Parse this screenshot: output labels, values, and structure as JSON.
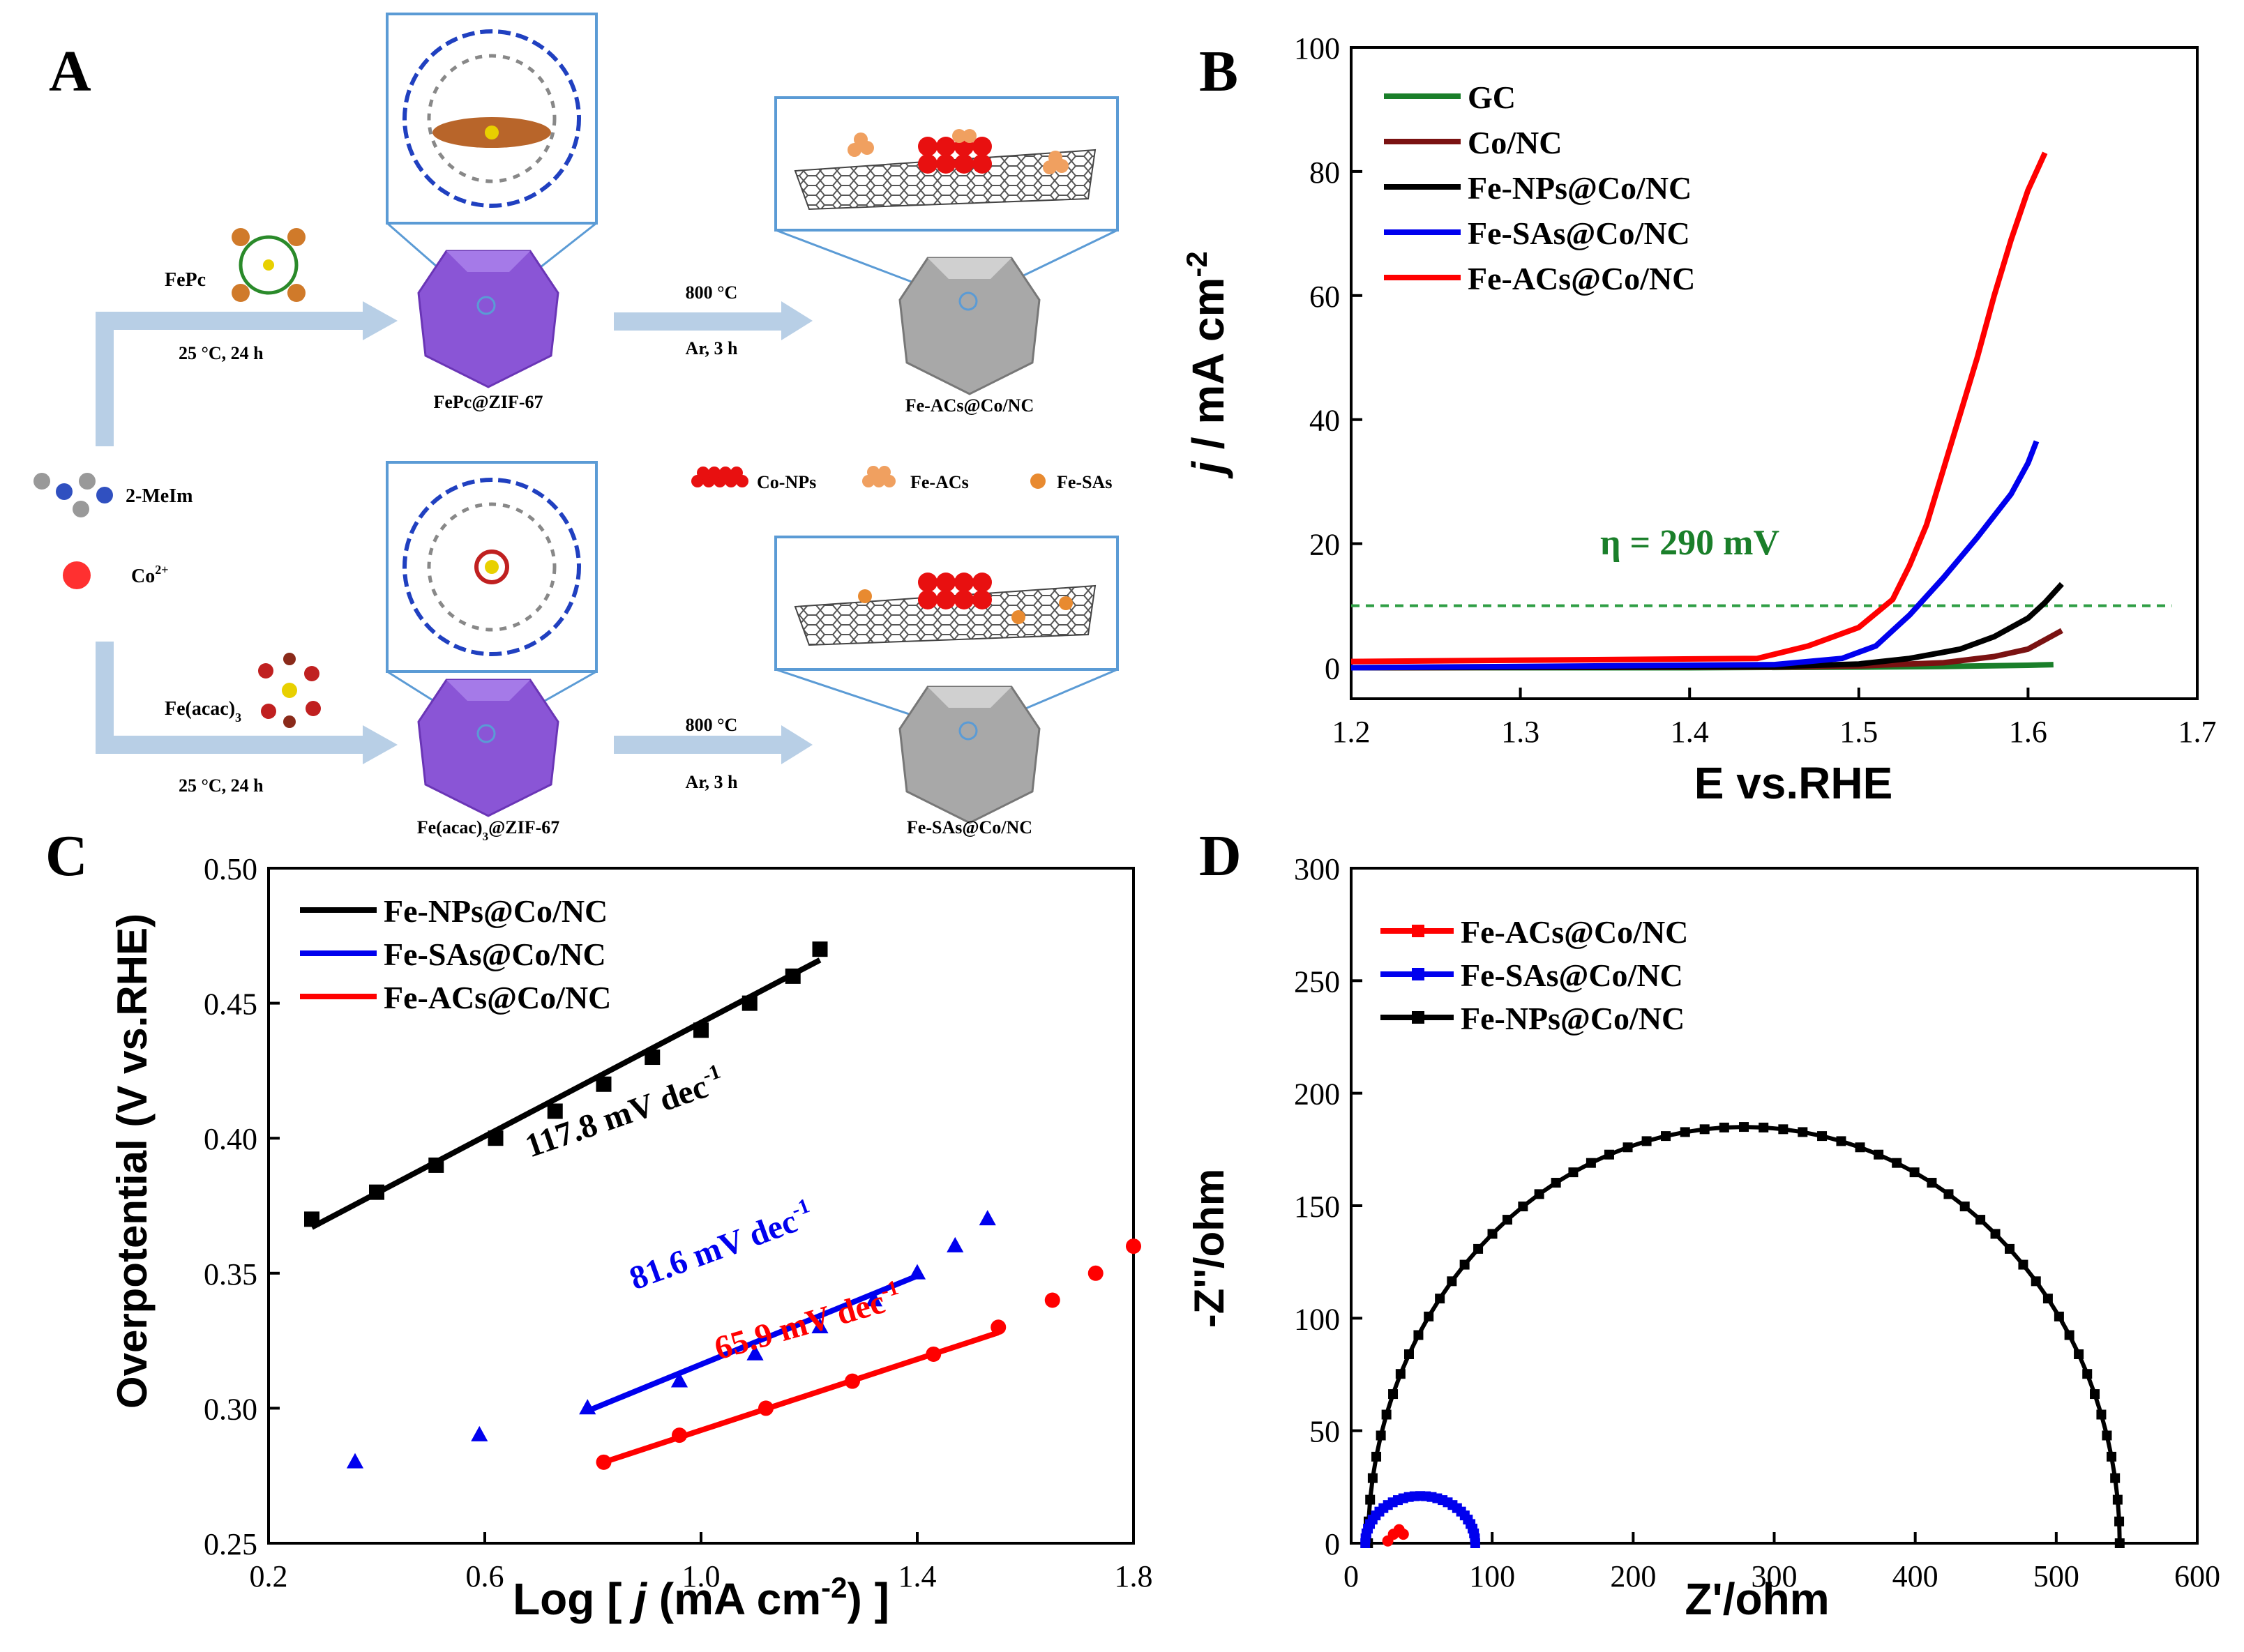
{
  "panel_labels": {
    "a": "A",
    "b": "B",
    "c": "C",
    "d": "D"
  },
  "scheme": {
    "fepc_label": "FePc",
    "fe_acac_label": "Fe(acac)",
    "fe_acac_sub": "3",
    "step1_cond": "25 °C, 24 h",
    "step2_cond_temp": "800 °C",
    "step2_cond_gas": "Ar, 3 h",
    "ligand_label": "2-MeIm",
    "co_label": "Co",
    "co_sup": "2+",
    "top_precursor": "FePc@ZIF-67",
    "bottom_precursor_a": "Fe(acac)",
    "bottom_precursor_sub": "3",
    "bottom_precursor_b": "@ZIF-67",
    "top_product": "Fe-ACs@Co/NC",
    "bottom_product": "Fe-SAs@Co/NC",
    "legend_co_nps": "Co-NPs",
    "legend_fe_acs": "Fe-ACs",
    "legend_fe_sas": "Fe-SAs"
  },
  "colors": {
    "gc": "#1a7f2a",
    "co_nc": "#7a1212",
    "fe_nps": "#000000",
    "fe_sas": "#0000ee",
    "fe_acs": "#ff0000",
    "dashed": "#2e9e44",
    "annotation_green": "#1a7f2a",
    "arrow": "#b8cfe6",
    "box": "#5b9bd5",
    "zif": "#8a55d6",
    "carbon": "#9a9a9a"
  },
  "chart_data": [
    {
      "panel": "B",
      "type": "line",
      "xlabel": "E vs.RHE",
      "ylabel_italic": "j",
      "ylabel_rest": " / mA cm",
      "ylabel_sup": "-2",
      "xlim": [
        1.2,
        1.7
      ],
      "ylim": [
        -5,
        100
      ],
      "xticks": [
        "1.2",
        "1.3",
        "1.4",
        "1.5",
        "1.6",
        "1.7"
      ],
      "yticks": [
        "0",
        "20",
        "40",
        "60",
        "80",
        "100"
      ],
      "legend": [
        "GC",
        "Co/NC",
        "Fe-NPs@Co/NC",
        "Fe-SAs@Co/NC",
        "Fe-ACs@Co/NC"
      ],
      "annotation": "η = 290 mV",
      "reference_line_y": 10,
      "series": [
        {
          "name": "GC",
          "x": [
            1.2,
            1.4,
            1.5,
            1.55,
            1.6,
            1.615
          ],
          "y": [
            0,
            0,
            0.1,
            0.2,
            0.4,
            0.5
          ]
        },
        {
          "name": "Co/NC",
          "x": [
            1.2,
            1.45,
            1.5,
            1.55,
            1.58,
            1.6,
            1.61,
            1.62
          ],
          "y": [
            0,
            0.1,
            0.3,
            0.8,
            1.8,
            3.0,
            4.5,
            6.0
          ]
        },
        {
          "name": "Fe-NPs@Co/NC",
          "x": [
            1.2,
            1.45,
            1.5,
            1.53,
            1.56,
            1.58,
            1.6,
            1.61,
            1.62
          ],
          "y": [
            0,
            0.2,
            0.6,
            1.5,
            3.0,
            5.0,
            8.0,
            10.5,
            13.5
          ]
        },
        {
          "name": "Fe-SAs@Co/NC",
          "x": [
            1.2,
            1.45,
            1.49,
            1.51,
            1.53,
            1.55,
            1.57,
            1.59,
            1.6,
            1.605
          ],
          "y": [
            0,
            0.5,
            1.5,
            3.5,
            8.5,
            14.5,
            21.0,
            28.0,
            33.0,
            36.5
          ]
        },
        {
          "name": "Fe-ACs@Co/NC",
          "x": [
            1.2,
            1.44,
            1.47,
            1.5,
            1.52,
            1.53,
            1.54,
            1.55,
            1.56,
            1.57,
            1.58,
            1.59,
            1.6,
            1.61
          ],
          "y": [
            1.0,
            1.5,
            3.5,
            6.5,
            11.0,
            16.5,
            23.0,
            32.0,
            41.0,
            50.0,
            60.0,
            69.0,
            77.0,
            83.0
          ]
        }
      ]
    },
    {
      "panel": "C",
      "type": "scatter",
      "xlabel_a": "Log [ ",
      "xlabel_italic": "j",
      "xlabel_b": " (mA cm",
      "xlabel_sup": "-2",
      "xlabel_c": ") ]",
      "ylabel": "Overpotential (V vs.RHE)",
      "xlim": [
        0.2,
        1.8
      ],
      "ylim": [
        0.25,
        0.5
      ],
      "xticks": [
        "0.2",
        "0.6",
        "1.0",
        "1.4",
        "1.8"
      ],
      "yticks": [
        "0.25",
        "0.30",
        "0.35",
        "0.40",
        "0.45",
        "0.50"
      ],
      "legend": [
        "Fe-NPs@Co/NC",
        "Fe-SAs@Co/NC",
        "Fe-ACs@Co/NC"
      ],
      "series": [
        {
          "name": "Fe-NPs@Co/NC",
          "marker": "square",
          "x": [
            0.28,
            0.4,
            0.51,
            0.62,
            0.73,
            0.82,
            0.91,
            1.0,
            1.09,
            1.17,
            1.22
          ],
          "y": [
            0.37,
            0.38,
            0.39,
            0.4,
            0.41,
            0.42,
            0.43,
            0.44,
            0.45,
            0.46,
            0.47
          ],
          "fit": {
            "x": [
              0.28,
              1.22
            ],
            "y": [
              0.367,
              0.466
            ]
          },
          "slope_label": "117.8 mV dec",
          "slope_sup": "-1"
        },
        {
          "name": "Fe-SAs@Co/NC",
          "marker": "triangle",
          "x": [
            0.36,
            0.59,
            0.79,
            0.96,
            1.1,
            1.22,
            1.32,
            1.4,
            1.47,
            1.53
          ],
          "y": [
            0.28,
            0.29,
            0.3,
            0.31,
            0.32,
            0.33,
            0.34,
            0.35,
            0.36,
            0.37
          ],
          "fit": {
            "x": [
              0.79,
              1.4
            ],
            "y": [
              0.299,
              0.349
            ]
          },
          "slope_label": "81.6 mV dec",
          "slope_sup": "-1"
        },
        {
          "name": "Fe-ACs@Co/NC",
          "marker": "circle",
          "x": [
            0.82,
            0.96,
            1.12,
            1.28,
            1.43,
            1.55,
            1.65,
            1.73,
            1.8
          ],
          "y": [
            0.28,
            0.29,
            0.3,
            0.31,
            0.32,
            0.33,
            0.34,
            0.35,
            0.36
          ],
          "fit": {
            "x": [
              0.82,
              1.55
            ],
            "y": [
              0.28,
              0.328
            ]
          },
          "slope_label": "65.9 mV dec",
          "slope_sup": "-1"
        }
      ]
    },
    {
      "panel": "D",
      "type": "scatter",
      "xlabel": "Z'/ohm",
      "ylabel": "-Z''/ohm",
      "xlim": [
        0,
        600
      ],
      "ylim": [
        0,
        300
      ],
      "xticks": [
        "0",
        "100",
        "200",
        "300",
        "400",
        "500",
        "600"
      ],
      "yticks": [
        "0",
        "50",
        "100",
        "150",
        "200",
        "250",
        "300"
      ],
      "legend": [
        "Fe-ACs@Co/NC",
        "Fe-SAs@Co/NC",
        "Fe-NPs@Co/NC"
      ],
      "series": [
        {
          "name": "Fe-NPs@Co/NC",
          "semicircle": {
            "x_start": 12,
            "x_end": 545,
            "peak_x": 283,
            "peak_y": 185
          }
        },
        {
          "name": "Fe-SAs@Co/NC",
          "semicircle": {
            "x_start": 10,
            "x_end": 88,
            "peak_x": 55,
            "peak_y": 21
          }
        },
        {
          "name": "Fe-ACs@Co/NC",
          "points": {
            "x": [
              26,
              30,
              34,
              37
            ],
            "y": [
              1,
              4,
              6,
              4
            ]
          }
        }
      ]
    }
  ]
}
